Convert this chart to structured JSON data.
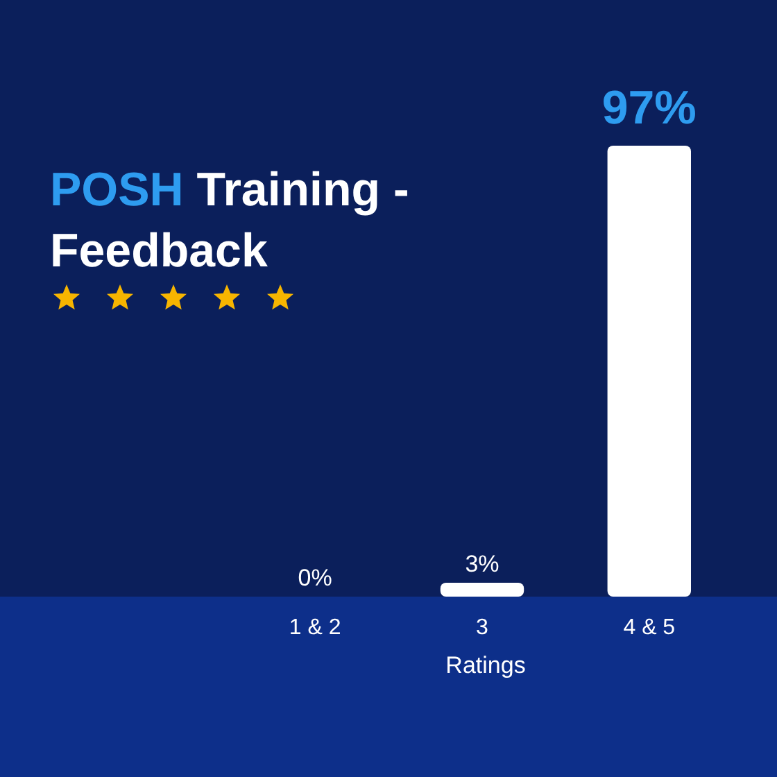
{
  "chart_data": {
    "type": "bar",
    "title": "POSH Training - Feedback",
    "xlabel": "Ratings",
    "categories": [
      "1 & 2",
      "3",
      "4 & 5"
    ],
    "values": [
      0,
      3,
      97
    ],
    "value_labels": [
      "0%",
      "3%",
      "97%"
    ],
    "color": "#ffffff"
  }
}
